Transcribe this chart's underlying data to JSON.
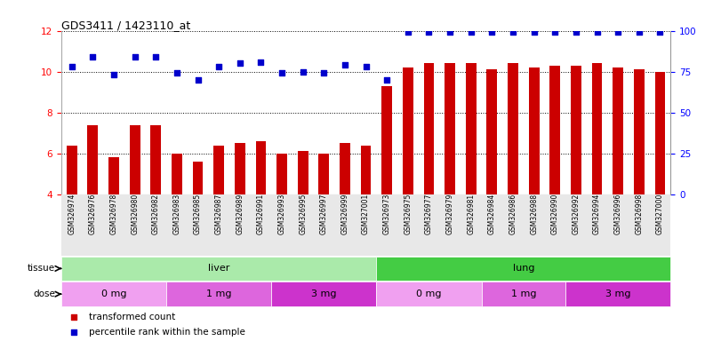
{
  "title": "GDS3411 / 1423110_at",
  "samples": [
    "GSM326974",
    "GSM326976",
    "GSM326978",
    "GSM326980",
    "GSM326982",
    "GSM326983",
    "GSM326985",
    "GSM326987",
    "GSM326989",
    "GSM326991",
    "GSM326993",
    "GSM326995",
    "GSM326997",
    "GSM326999",
    "GSM327001",
    "GSM326973",
    "GSM326975",
    "GSM326977",
    "GSM326979",
    "GSM326981",
    "GSM326984",
    "GSM326986",
    "GSM326988",
    "GSM326990",
    "GSM326992",
    "GSM326994",
    "GSM326996",
    "GSM326998",
    "GSM327000"
  ],
  "bar_values": [
    6.4,
    7.4,
    5.8,
    7.4,
    7.4,
    6.0,
    5.6,
    6.4,
    6.5,
    6.6,
    6.0,
    6.1,
    6.0,
    6.5,
    6.4,
    9.3,
    10.2,
    10.4,
    10.4,
    10.4,
    10.1,
    10.4,
    10.2,
    10.3,
    10.3,
    10.4,
    10.2,
    10.1,
    10.0
  ],
  "percentile_values": [
    78,
    84,
    73,
    84,
    84,
    74,
    70,
    78,
    80,
    81,
    74,
    75,
    74,
    79,
    78,
    70,
    99,
    99,
    99,
    99,
    99,
    99,
    99,
    99,
    99,
    99,
    99,
    99,
    99
  ],
  "bar_color": "#cc0000",
  "dot_color": "#0000cc",
  "ylim_left": [
    4,
    12
  ],
  "ylim_right": [
    0,
    100
  ],
  "yticks_left": [
    4,
    6,
    8,
    10,
    12
  ],
  "yticks_right": [
    0,
    25,
    50,
    75,
    100
  ],
  "tissue_groups": [
    {
      "label": "liver",
      "start": 0,
      "end": 15,
      "color": "#aaeaaa"
    },
    {
      "label": "lung",
      "start": 15,
      "end": 29,
      "color": "#44cc44"
    }
  ],
  "dose_groups": [
    {
      "label": "0 mg",
      "start": 0,
      "end": 5,
      "color": "#f0a0f0"
    },
    {
      "label": "1 mg",
      "start": 5,
      "end": 10,
      "color": "#dd66dd"
    },
    {
      "label": "3 mg",
      "start": 10,
      "end": 15,
      "color": "#cc33cc"
    },
    {
      "label": "0 mg",
      "start": 15,
      "end": 20,
      "color": "#f0a0f0"
    },
    {
      "label": "1 mg",
      "start": 20,
      "end": 24,
      "color": "#dd66dd"
    },
    {
      "label": "3 mg",
      "start": 24,
      "end": 29,
      "color": "#cc33cc"
    }
  ],
  "legend_items": [
    {
      "label": "transformed count",
      "color": "#cc0000"
    },
    {
      "label": "percentile rank within the sample",
      "color": "#0000cc"
    }
  ]
}
